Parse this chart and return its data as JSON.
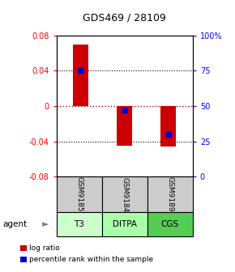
{
  "title": "GDS469 / 28109",
  "samples": [
    "GSM9185",
    "GSM9184",
    "GSM9189"
  ],
  "agents": [
    "T3",
    "DITPA",
    "CGS"
  ],
  "log_ratios": [
    0.07,
    -0.045,
    -0.046
  ],
  "percentile_ranks": [
    75.0,
    47.0,
    30.0
  ],
  "ylim_left": [
    -0.08,
    0.08
  ],
  "left_ticks": [
    -0.08,
    -0.04,
    0,
    0.04,
    0.08
  ],
  "right_ticks": [
    0,
    25,
    50,
    75,
    100
  ],
  "right_tick_labels": [
    "0",
    "25",
    "50",
    "75",
    "100%"
  ],
  "bar_color": "#cc0000",
  "percentile_color": "#0000cc",
  "bar_width": 0.35,
  "agent_colors": [
    "#ccffcc",
    "#aaffaa",
    "#55cc55"
  ],
  "sample_bg_color": "#cccccc",
  "zero_line_color": "#cc0000",
  "legend_items": [
    {
      "label": "log ratio",
      "color": "#cc0000"
    },
    {
      "label": "percentile rank within the sample",
      "color": "#0000cc"
    }
  ]
}
